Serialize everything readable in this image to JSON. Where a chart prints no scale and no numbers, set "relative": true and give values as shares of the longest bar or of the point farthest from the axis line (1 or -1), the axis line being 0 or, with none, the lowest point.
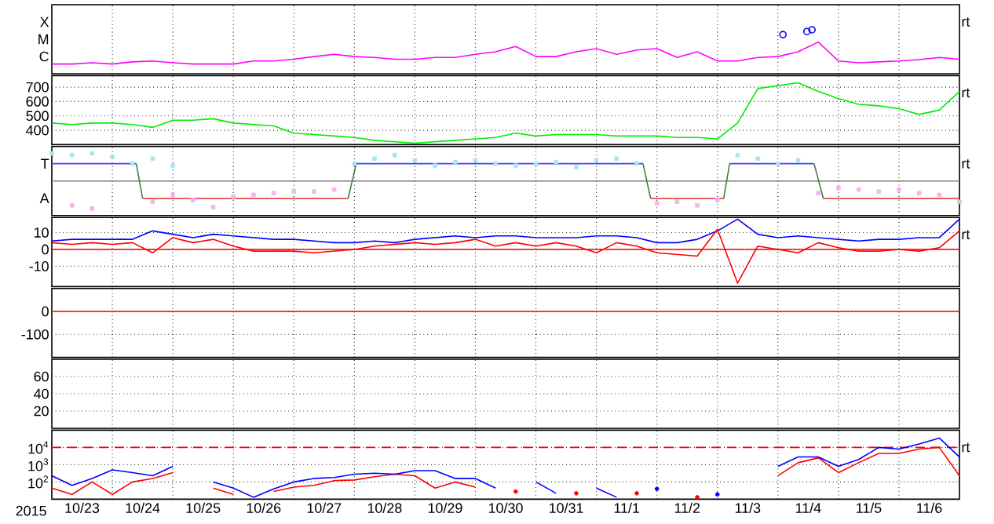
{
  "chart_data": [
    {
      "type": "line",
      "xlim": [
        "2015-10-23",
        "2015-11-07"
      ],
      "xticks": [
        {
          "value": "2015-10-24",
          "label": null
        },
        {
          "value": "2015-10-25",
          "label": null
        },
        {
          "value": "2015-10-26",
          "label": null
        },
        {
          "value": "2015-10-27",
          "label": null
        },
        {
          "value": "2015-10-28",
          "label": null
        },
        {
          "value": "2015-10-29",
          "label": null
        },
        {
          "value": "2015-10-30",
          "label": null
        },
        {
          "value": "2015-10-31",
          "label": null
        },
        {
          "value": "2015-11-01",
          "label": null
        },
        {
          "value": "2015-11-02",
          "label": null
        },
        {
          "value": "2015-11-03",
          "label": null
        },
        {
          "value": "2015-11-04",
          "label": null
        },
        {
          "value": "2015-11-05",
          "label": null
        },
        {
          "value": "2015-11-06",
          "label": null
        }
      ],
      "relative": true,
      "grid": "x",
      "tick_labels": "y",
      "annotations": [
        "C",
        "M",
        "X",
        "rt"
      ],
      "x": [
        "2015-10-23T00:00",
        "2015-10-23T08:00",
        "2015-10-23T16:00",
        "2015-10-24T00:00",
        "2015-10-24T08:00",
        "2015-10-24T16:00",
        "2015-10-25T00:00",
        "2015-10-25T08:00",
        "2015-10-25T16:00",
        "2015-10-26T00:00",
        "2015-10-26T08:00",
        "2015-10-26T16:00",
        "2015-10-27T00:00",
        "2015-10-27T08:00",
        "2015-10-27T16:00",
        "2015-10-28T00:00",
        "2015-10-28T08:00",
        "2015-10-28T16:00",
        "2015-10-29T00:00",
        "2015-10-29T08:00",
        "2015-10-29T16:00",
        "2015-10-30T00:00",
        "2015-10-30T08:00",
        "2015-10-30T16:00",
        "2015-10-31T00:00",
        "2015-10-31T08:00",
        "2015-10-31T16:00",
        "2015-11-01T00:00",
        "2015-11-01T08:00",
        "2015-11-01T16:00",
        "2015-11-02T00:00",
        "2015-11-02T08:00",
        "2015-11-02T16:00",
        "2015-11-03T00:00",
        "2015-11-03T08:00",
        "2015-11-03T16:00",
        "2015-11-04T00:00",
        "2015-11-04T08:00",
        "2015-11-04T16:00",
        "2015-11-05T00:00",
        "2015-11-05T08:00",
        "2015-11-05T16:00",
        "2015-11-06T00:00",
        "2015-11-06T08:00",
        "2015-11-06T16:00",
        "2015-11-07T00:00"
      ],
      "series": [
        {
          "color": "#ff00ff",
          "values": [
            0.22,
            0.22,
            0.25,
            0.22,
            0.27,
            0.29,
            0.25,
            0.22,
            0.22,
            0.22,
            0.29,
            0.29,
            0.33,
            0.39,
            0.44,
            0.39,
            0.37,
            0.33,
            0.33,
            0.37,
            0.37,
            0.44,
            0.5,
            0.62,
            0.39,
            0.39,
            0.5,
            0.57,
            0.44,
            0.54,
            0.57,
            0.37,
            0.5,
            0.29,
            0.29,
            0.37,
            0.39,
            0.5,
            0.72,
            0.29,
            0.25,
            0.27,
            0.29,
            0.32,
            0.37,
            0.33
          ]
        },
        {
          "type": "scatter",
          "marker": "circle",
          "color": "#0000ff",
          "x": [
            "2015-11-04T02:00",
            "2015-11-04T11:30",
            "2015-11-04T13:30"
          ],
          "values": [
            0.89,
            0.96,
            1
          ]
        }
      ]
    },
    {
      "type": "line",
      "xlim": [
        "2015-10-23",
        "2015-11-07"
      ],
      "xticks": [
        {
          "value": "2015-10-24",
          "label": null
        },
        {
          "value": "2015-10-25",
          "label": null
        },
        {
          "value": "2015-10-26",
          "label": null
        },
        {
          "value": "2015-10-27",
          "label": null
        },
        {
          "value": "2015-10-28",
          "label": null
        },
        {
          "value": "2015-10-29",
          "label": null
        },
        {
          "value": "2015-10-30",
          "label": null
        },
        {
          "value": "2015-10-31",
          "label": null
        },
        {
          "value": "2015-11-01",
          "label": null
        },
        {
          "value": "2015-11-02",
          "label": null
        },
        {
          "value": "2015-11-03",
          "label": null
        },
        {
          "value": "2015-11-04",
          "label": null
        },
        {
          "value": "2015-11-05",
          "label": null
        },
        {
          "value": "2015-11-06",
          "label": null
        }
      ],
      "ylim": [
        300,
        780
      ],
      "yticks": [
        400,
        500,
        600,
        700
      ],
      "grid": true,
      "tick_labels": "y",
      "annotations": [
        "rt"
      ],
      "x": [
        "2015-10-23T00:00",
        "2015-10-23T08:00",
        "2015-10-23T16:00",
        "2015-10-24T00:00",
        "2015-10-24T08:00",
        "2015-10-24T16:00",
        "2015-10-25T00:00",
        "2015-10-25T08:00",
        "2015-10-25T16:00",
        "2015-10-26T00:00",
        "2015-10-26T08:00",
        "2015-10-26T16:00",
        "2015-10-27T00:00",
        "2015-10-27T08:00",
        "2015-10-27T16:00",
        "2015-10-28T00:00",
        "2015-10-28T08:00",
        "2015-10-28T16:00",
        "2015-10-29T00:00",
        "2015-10-29T08:00",
        "2015-10-29T16:00",
        "2015-10-30T00:00",
        "2015-10-30T08:00",
        "2015-10-30T16:00",
        "2015-10-31T00:00",
        "2015-10-31T08:00",
        "2015-10-31T16:00",
        "2015-11-01T00:00",
        "2015-11-01T08:00",
        "2015-11-01T16:00",
        "2015-11-02T00:00",
        "2015-11-02T08:00",
        "2015-11-02T16:00",
        "2015-11-03T00:00",
        "2015-11-03T08:00",
        "2015-11-03T16:00",
        "2015-11-04T00:00",
        "2015-11-04T08:00",
        "2015-11-04T16:00",
        "2015-11-05T00:00",
        "2015-11-05T08:00",
        "2015-11-05T16:00",
        "2015-11-06T00:00",
        "2015-11-06T08:00",
        "2015-11-06T16:00",
        "2015-11-07T00:00"
      ],
      "series": [
        {
          "color": "#00ee00",
          "values": [
            450,
            440,
            450,
            450,
            440,
            420,
            470,
            470,
            480,
            450,
            440,
            430,
            380,
            370,
            360,
            350,
            330,
            320,
            310,
            320,
            330,
            340,
            350,
            380,
            360,
            370,
            370,
            370,
            360,
            360,
            360,
            350,
            350,
            340,
            450,
            690,
            710,
            730,
            670,
            620,
            580,
            570,
            550,
            510,
            540,
            670
          ]
        }
      ]
    },
    {
      "type": "line",
      "relative": true,
      "xlim": [
        "2015-10-23",
        "2015-11-07"
      ],
      "xticks": [
        {
          "value": "2015-10-24",
          "label": null
        },
        {
          "value": "2015-10-25",
          "label": null
        },
        {
          "value": "2015-10-26",
          "label": null
        },
        {
          "value": "2015-10-27",
          "label": null
        },
        {
          "value": "2015-10-28",
          "label": null
        },
        {
          "value": "2015-10-29",
          "label": null
        },
        {
          "value": "2015-10-30",
          "label": null
        },
        {
          "value": "2015-10-31",
          "label": null
        },
        {
          "value": "2015-11-01",
          "label": null
        },
        {
          "value": "2015-11-02",
          "label": null
        },
        {
          "value": "2015-11-03",
          "label": null
        },
        {
          "value": "2015-11-04",
          "label": null
        },
        {
          "value": "2015-11-05",
          "label": null
        },
        {
          "value": "2015-11-06",
          "label": null
        }
      ],
      "grid": "x",
      "tick_labels": "y",
      "annotations": [
        "T",
        "A",
        "rt"
      ],
      "ref_lines": [
        {
          "axis": "y",
          "value": 0,
          "color": "#808080"
        }
      ],
      "x": [
        "2015-10-23T00:00",
        "2015-10-23T08:00",
        "2015-10-23T16:00",
        "2015-10-24T00:00",
        "2015-10-24T08:00",
        "2015-10-24T16:00",
        "2015-10-25T00:00",
        "2015-10-25T08:00",
        "2015-10-25T16:00",
        "2015-10-26T00:00",
        "2015-10-26T08:00",
        "2015-10-26T16:00",
        "2015-10-27T00:00",
        "2015-10-27T08:00",
        "2015-10-27T16:00",
        "2015-10-28T00:00",
        "2015-10-28T08:00",
        "2015-10-28T16:00",
        "2015-10-29T00:00",
        "2015-10-29T08:00",
        "2015-10-29T16:00",
        "2015-10-30T00:00",
        "2015-10-30T08:00",
        "2015-10-30T16:00",
        "2015-10-31T00:00",
        "2015-10-31T08:00",
        "2015-10-31T16:00",
        "2015-11-01T00:00",
        "2015-11-01T08:00",
        "2015-11-01T16:00",
        "2015-11-02T00:00",
        "2015-11-02T08:00",
        "2015-11-02T16:00",
        "2015-11-03T00:00",
        "2015-11-03T08:00",
        "2015-11-03T16:00",
        "2015-11-04T00:00",
        "2015-11-04T08:00",
        "2015-11-04T16:00",
        "2015-11-05T00:00",
        "2015-11-05T08:00",
        "2015-11-05T16:00",
        "2015-11-06T00:00",
        "2015-11-06T08:00",
        "2015-11-06T16:00",
        "2015-11-07T00:00"
      ],
      "series": [
        {
          "type": "scatter",
          "marker": "square",
          "color": "#a8e4f4",
          "values": [
            1,
            0.94,
            1,
            0.88,
            0.63,
            0.81,
            0.56,
            null,
            null,
            null,
            null,
            null,
            null,
            null,
            null,
            0.63,
            0.81,
            0.94,
            0.75,
            0.56,
            0.69,
            0.75,
            0.63,
            0.56,
            0.63,
            0.69,
            0.5,
            0.75,
            0.81,
            0.63,
            null,
            null,
            null,
            null,
            0.94,
            0.81,
            0.63,
            0.75,
            null,
            null,
            null,
            null,
            null,
            null,
            null,
            null
          ]
        },
        {
          "type": "scatter",
          "marker": "square",
          "color": "#f4b4ec",
          "values": [
            null,
            -0.88,
            -1,
            null,
            null,
            -0.75,
            -0.5,
            -0.69,
            -0.94,
            -0.56,
            -0.5,
            -0.44,
            -0.38,
            -0.38,
            -0.31,
            null,
            null,
            null,
            null,
            null,
            null,
            null,
            null,
            null,
            null,
            null,
            null,
            null,
            null,
            null,
            -0.81,
            -0.75,
            -0.88,
            -0.69,
            null,
            null,
            null,
            null,
            -0.44,
            -0.25,
            -0.31,
            -0.38,
            -0.31,
            -0.44,
            -0.5,
            -0.75
          ]
        },
        {
          "color": "#4040ff",
          "x": [
            "2015-10-23T00:00",
            "2015-10-24T09:30",
            "2015-10-26T00:00",
            "2015-10-28T00:45",
            "2015-11-01T18:30",
            "2015-11-02T12:00",
            "2015-11-03T04:50",
            "2015-11-04T14:20"
          ],
          "values": [
            0.63,
            0.63,
            null,
            0.63,
            0.63,
            null,
            0.63,
            0.63
          ]
        },
        {
          "color": "#e03030",
          "x": [
            "2015-10-24T12:00",
            "2015-10-27T21:30",
            "2015-10-30T00:00",
            "2015-11-01T21:30",
            "2015-11-03T02:30",
            "2015-11-04T00:00",
            "2015-11-04T18:00",
            "2015-11-07T00:00"
          ],
          "values": [
            -0.63,
            -0.63,
            null,
            -0.63,
            -0.63,
            null,
            -0.63,
            -0.63
          ]
        },
        {
          "color": "#408040",
          "x": [
            "2015-10-24T09:30",
            "2015-10-24T12:00",
            "2015-10-26T00:00",
            "2015-10-27T21:30",
            "2015-10-28T00:45",
            "2015-10-30T00:00",
            "2015-11-01T18:30",
            "2015-11-01T21:30",
            "2015-11-02T12:00",
            "2015-11-03T02:30",
            "2015-11-03T04:50",
            "2015-11-04T00:00",
            "2015-11-04T14:20",
            "2015-11-04T18:00"
          ],
          "values": [
            0.63,
            -0.63,
            null,
            -0.63,
            0.63,
            null,
            0.63,
            -0.63,
            null,
            -0.63,
            0.63,
            null,
            0.63,
            -0.63
          ]
        }
      ]
    },
    {
      "type": "line",
      "xlim": [
        "2015-10-23",
        "2015-11-07"
      ],
      "xticks": [
        {
          "value": "2015-10-24",
          "label": null
        },
        {
          "value": "2015-10-25",
          "label": null
        },
        {
          "value": "2015-10-26",
          "label": null
        },
        {
          "value": "2015-10-27",
          "label": null
        },
        {
          "value": "2015-10-28",
          "label": null
        },
        {
          "value": "2015-10-29",
          "label": null
        },
        {
          "value": "2015-10-30",
          "label": null
        },
        {
          "value": "2015-10-31",
          "label": null
        },
        {
          "value": "2015-11-01",
          "label": null
        },
        {
          "value": "2015-11-02",
          "label": null
        },
        {
          "value": "2015-11-03",
          "label": null
        },
        {
          "value": "2015-11-04",
          "label": null
        },
        {
          "value": "2015-11-05",
          "label": null
        },
        {
          "value": "2015-11-06",
          "label": null
        }
      ],
      "ylim": [
        -22,
        19
      ],
      "yticks": [
        -10,
        0,
        10
      ],
      "grid": true,
      "tick_labels": "y",
      "annotations": [
        "rt"
      ],
      "ref_lines": [
        {
          "axis": "y",
          "value": 0,
          "color": "#ff0000"
        }
      ],
      "x": [
        "2015-10-23T00:00",
        "2015-10-23T08:00",
        "2015-10-23T16:00",
        "2015-10-24T00:00",
        "2015-10-24T08:00",
        "2015-10-24T16:00",
        "2015-10-25T00:00",
        "2015-10-25T08:00",
        "2015-10-25T16:00",
        "2015-10-26T00:00",
        "2015-10-26T08:00",
        "2015-10-26T16:00",
        "2015-10-27T00:00",
        "2015-10-27T08:00",
        "2015-10-27T16:00",
        "2015-10-28T00:00",
        "2015-10-28T08:00",
        "2015-10-28T16:00",
        "2015-10-29T00:00",
        "2015-10-29T08:00",
        "2015-10-29T16:00",
        "2015-10-30T00:00",
        "2015-10-30T08:00",
        "2015-10-30T16:00",
        "2015-10-31T00:00",
        "2015-10-31T08:00",
        "2015-10-31T16:00",
        "2015-11-01T00:00",
        "2015-11-01T08:00",
        "2015-11-01T16:00",
        "2015-11-02T00:00",
        "2015-11-02T08:00",
        "2015-11-02T16:00",
        "2015-11-03T00:00",
        "2015-11-03T08:00",
        "2015-11-03T16:00",
        "2015-11-04T00:00",
        "2015-11-04T08:00",
        "2015-11-04T16:00",
        "2015-11-05T00:00",
        "2015-11-05T08:00",
        "2015-11-05T16:00",
        "2015-11-06T00:00",
        "2015-11-06T08:00",
        "2015-11-06T16:00",
        "2015-11-07T00:00"
      ],
      "series": [
        {
          "color": "#0000ff",
          "values": [
            5,
            6,
            6,
            6,
            6,
            11,
            9,
            7,
            9,
            8,
            7,
            6,
            6,
            5,
            4,
            4,
            5,
            4,
            6,
            7,
            8,
            7,
            8,
            8,
            7,
            7,
            7,
            8,
            8,
            7,
            4,
            4,
            6,
            11,
            18,
            9,
            7,
            8,
            7,
            6,
            5,
            6,
            6,
            7,
            7,
            18
          ]
        },
        {
          "color": "#ff0000",
          "values": [
            4,
            3,
            4,
            3,
            4,
            -2,
            7,
            4,
            6,
            2,
            -1,
            -1,
            -1,
            -2,
            -1,
            0,
            2,
            3,
            4,
            3,
            4,
            6,
            2,
            4,
            2,
            4,
            2,
            -2,
            4,
            2,
            -2,
            -3,
            -4,
            12,
            -20,
            2,
            0,
            -2,
            4,
            1,
            -1,
            -1,
            0,
            -1,
            1,
            11
          ]
        }
      ]
    },
    {
      "type": "line",
      "xlim": [
        "2015-10-23",
        "2015-11-07"
      ],
      "xticks": [
        {
          "value": "2015-10-24",
          "label": null
        },
        {
          "value": "2015-10-25",
          "label": null
        },
        {
          "value": "2015-10-26",
          "label": null
        },
        {
          "value": "2015-10-27",
          "label": null
        },
        {
          "value": "2015-10-28",
          "label": null
        },
        {
          "value": "2015-10-29",
          "label": null
        },
        {
          "value": "2015-10-30",
          "label": null
        },
        {
          "value": "2015-10-31",
          "label": null
        },
        {
          "value": "2015-11-01",
          "label": null
        },
        {
          "value": "2015-11-02",
          "label": null
        },
        {
          "value": "2015-11-03",
          "label": null
        },
        {
          "value": "2015-11-04",
          "label": null
        },
        {
          "value": "2015-11-05",
          "label": null
        },
        {
          "value": "2015-11-06",
          "label": null
        }
      ],
      "ylim": [
        -200,
        100
      ],
      "yticks": [
        -100,
        0
      ],
      "grid": true,
      "tick_labels": "y",
      "ref_lines": [
        {
          "axis": "y",
          "value": 0,
          "color": "#ff0000"
        }
      ]
    },
    {
      "type": "line",
      "xlim": [
        "2015-10-23",
        "2015-11-07"
      ],
      "xticks": [
        {
          "value": "2015-10-24",
          "label": null
        },
        {
          "value": "2015-10-25",
          "label": null
        },
        {
          "value": "2015-10-26",
          "label": null
        },
        {
          "value": "2015-10-27",
          "label": null
        },
        {
          "value": "2015-10-28",
          "label": null
        },
        {
          "value": "2015-10-29",
          "label": null
        },
        {
          "value": "2015-10-30",
          "label": null
        },
        {
          "value": "2015-10-31",
          "label": null
        },
        {
          "value": "2015-11-01",
          "label": null
        },
        {
          "value": "2015-11-02",
          "label": null
        },
        {
          "value": "2015-11-03",
          "label": null
        },
        {
          "value": "2015-11-04",
          "label": null
        },
        {
          "value": "2015-11-05",
          "label": null
        },
        {
          "value": "2015-11-06",
          "label": null
        }
      ],
      "ylim": [
        0,
        80
      ],
      "yticks": [
        20,
        40,
        60
      ],
      "grid": true,
      "tick_labels": "y"
    },
    {
      "type": "line",
      "xlabel": "2015",
      "xlim": [
        "2015-10-23",
        "2015-11-07"
      ],
      "xticks": [
        {
          "value": "2015-10-24",
          "label": null
        },
        {
          "value": "2015-10-25",
          "label": null
        },
        {
          "value": "2015-10-26",
          "label": null
        },
        {
          "value": "2015-10-27",
          "label": null
        },
        {
          "value": "2015-10-28",
          "label": null
        },
        {
          "value": "2015-10-29",
          "label": null
        },
        {
          "value": "2015-10-30",
          "label": null
        },
        {
          "value": "2015-10-31",
          "label": null
        },
        {
          "value": "2015-11-01",
          "label": null
        },
        {
          "value": "2015-11-02",
          "label": null
        },
        {
          "value": "2015-11-03",
          "label": null
        },
        {
          "value": "2015-11-04",
          "label": null
        },
        {
          "value": "2015-11-05",
          "label": null
        },
        {
          "value": "2015-11-06",
          "label": null
        },
        {
          "value": "2015-10-23T12:00",
          "label": "10/23"
        },
        {
          "value": "2015-10-24T12:00",
          "label": "10/24"
        },
        {
          "value": "2015-10-25T12:00",
          "label": "10/25"
        },
        {
          "value": "2015-10-26T12:00",
          "label": "10/26"
        },
        {
          "value": "2015-10-27T12:00",
          "label": "10/27"
        },
        {
          "value": "2015-10-28T12:00",
          "label": "10/28"
        },
        {
          "value": "2015-10-29T12:00",
          "label": "10/29"
        },
        {
          "value": "2015-10-30T12:00",
          "label": "10/30"
        },
        {
          "value": "2015-10-31T12:00",
          "label": "10/31"
        },
        {
          "value": "2015-11-01T12:00",
          "label": "11/1"
        },
        {
          "value": "2015-11-02T12:00",
          "label": "11/2"
        },
        {
          "value": "2015-11-03T12:00",
          "label": "11/3"
        },
        {
          "value": "2015-11-04T12:00",
          "label": "11/4"
        },
        {
          "value": "2015-11-05T12:00",
          "label": "11/5"
        },
        {
          "value": "2015-11-06T12:00",
          "label": "11/6"
        }
      ],
      "ylim": [
        10,
        100000
      ],
      "yticks": [
        {
          "value": 100,
          "label": "10$^{2}$"
        },
        {
          "value": 1000,
          "label": "10$^{3}$"
        },
        {
          "value": 10000,
          "label": "10$^{4}$"
        }
      ],
      "log": true,
      "grid": true,
      "annotations": [
        "rt"
      ],
      "ref_lines": [
        {
          "axis": "y",
          "value": 10000,
          "color": "#ff0000",
          "line_style": "dashed"
        }
      ],
      "x": [
        "2015-10-23T00:00",
        "2015-10-23T08:00",
        "2015-10-23T16:00",
        "2015-10-24T00:00",
        "2015-10-24T08:00",
        "2015-10-24T16:00",
        "2015-10-25T00:00",
        "2015-10-25T08:00",
        "2015-10-25T16:00",
        "2015-10-26T00:00",
        "2015-10-26T08:00",
        "2015-10-26T16:00",
        "2015-10-27T00:00",
        "2015-10-27T08:00",
        "2015-10-27T16:00",
        "2015-10-28T00:00",
        "2015-10-28T08:00",
        "2015-10-28T16:00",
        "2015-10-29T00:00",
        "2015-10-29T08:00",
        "2015-10-29T16:00",
        "2015-10-30T00:00",
        "2015-10-30T08:00",
        "2015-10-30T16:00",
        "2015-10-31T00:00",
        "2015-10-31T08:00",
        "2015-10-31T16:00",
        "2015-11-01T00:00",
        "2015-11-01T08:00",
        "2015-11-01T16:00",
        "2015-11-02T00:00",
        "2015-11-02T08:00",
        "2015-11-02T16:00",
        "2015-11-03T00:00",
        "2015-11-03T08:00",
        "2015-11-03T16:00",
        "2015-11-04T00:00",
        "2015-11-04T08:00",
        "2015-11-04T16:00",
        "2015-11-05T00:00",
        "2015-11-05T08:00",
        "2015-11-05T16:00",
        "2015-11-06T00:00",
        "2015-11-06T08:00",
        "2015-11-06T16:00",
        "2015-11-07T00:00"
      ],
      "series": [
        {
          "color": "#ff0000",
          "values": [
            44,
            19,
            100,
            19,
            100,
            160,
            350,
            null,
            44,
            19,
            null,
            28,
            50,
            63,
            120,
            130,
            200,
            280,
            230,
            44,
            100,
            50,
            null,
            28,
            null,
            null,
            22,
            null,
            null,
            22,
            null,
            null,
            13,
            null,
            null,
            null,
            230,
            1300,
            2500,
            350,
            1300,
            4500,
            4500,
            8000,
            10000,
            230
          ]
        },
        {
          "color": "#0000ff",
          "values": [
            230,
            63,
            160,
            500,
            350,
            230,
            800,
            null,
            100,
            44,
            13,
            40,
            100,
            160,
            180,
            280,
            320,
            280,
            450,
            450,
            160,
            160,
            44,
            null,
            100,
            22,
            null,
            44,
            13,
            null,
            40,
            null,
            null,
            19,
            null,
            null,
            800,
            2800,
            2800,
            800,
            2000,
            10000,
            8000,
            16000,
            35000,
            2800
          ]
        }
      ]
    }
  ]
}
